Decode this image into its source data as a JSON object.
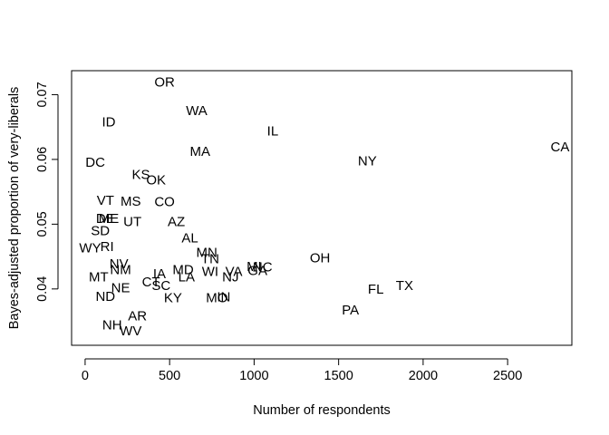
{
  "chart_data": {
    "type": "scatter",
    "title": "",
    "xlabel": "Number of respondents",
    "ylabel": "Bayes-adjusted proportion of very-liberals",
    "xlim": [
      -80,
      2880
    ],
    "ylim": [
      0.0313,
      0.0737
    ],
    "xticks": [
      0,
      500,
      1000,
      1500,
      2000,
      2500
    ],
    "xtick_labels": [
      "0",
      "500",
      "1000",
      "1500",
      "2000",
      "2500"
    ],
    "yticks": [
      0.04,
      0.05,
      0.06,
      0.07
    ],
    "ytick_labels": [
      "0.04",
      "0.05",
      "0.06",
      "0.07"
    ],
    "grid": false,
    "legend": "none",
    "points": [
      {
        "label": "OR",
        "x": 470,
        "y": 0.0719
      },
      {
        "label": "WA",
        "x": 660,
        "y": 0.0675
      },
      {
        "label": "ID",
        "x": 140,
        "y": 0.0657
      },
      {
        "label": "IL",
        "x": 1110,
        "y": 0.0643
      },
      {
        "label": "CA",
        "x": 2810,
        "y": 0.0619
      },
      {
        "label": "MA",
        "x": 680,
        "y": 0.0612
      },
      {
        "label": "NY",
        "x": 1670,
        "y": 0.0597
      },
      {
        "label": "DC",
        "x": 60,
        "y": 0.0595
      },
      {
        "label": "KS",
        "x": 330,
        "y": 0.0576
      },
      {
        "label": "OK",
        "x": 420,
        "y": 0.0568
      },
      {
        "label": "VT",
        "x": 120,
        "y": 0.0536
      },
      {
        "label": "MS",
        "x": 270,
        "y": 0.0535
      },
      {
        "label": "CO",
        "x": 470,
        "y": 0.0534
      },
      {
        "label": "DE",
        "x": 120,
        "y": 0.0508
      },
      {
        "label": "ME",
        "x": 140,
        "y": 0.0508
      },
      {
        "label": "UT",
        "x": 280,
        "y": 0.0503
      },
      {
        "label": "AZ",
        "x": 540,
        "y": 0.0503
      },
      {
        "label": "SD",
        "x": 90,
        "y": 0.0489
      },
      {
        "label": "AL",
        "x": 620,
        "y": 0.0478
      },
      {
        "label": "RI",
        "x": 130,
        "y": 0.0465
      },
      {
        "label": "WY",
        "x": 30,
        "y": 0.0463
      },
      {
        "label": "MN",
        "x": 720,
        "y": 0.0456
      },
      {
        "label": "OH",
        "x": 1390,
        "y": 0.0447
      },
      {
        "label": "TN",
        "x": 740,
        "y": 0.0446
      },
      {
        "label": "NV",
        "x": 200,
        "y": 0.0438
      },
      {
        "label": "MI",
        "x": 1000,
        "y": 0.0434
      },
      {
        "label": "NC",
        "x": 1050,
        "y": 0.0433
      },
      {
        "label": "NM",
        "x": 210,
        "y": 0.0429
      },
      {
        "label": "MD",
        "x": 580,
        "y": 0.0429
      },
      {
        "label": "GA",
        "x": 1020,
        "y": 0.0428
      },
      {
        "label": "WI",
        "x": 740,
        "y": 0.0426
      },
      {
        "label": "VA",
        "x": 880,
        "y": 0.0426
      },
      {
        "label": "IA",
        "x": 440,
        "y": 0.0423
      },
      {
        "label": "NJ",
        "x": 860,
        "y": 0.0418
      },
      {
        "label": "LA",
        "x": 600,
        "y": 0.0418
      },
      {
        "label": "MT",
        "x": 80,
        "y": 0.0418
      },
      {
        "label": "CT",
        "x": 390,
        "y": 0.041
      },
      {
        "label": "TX",
        "x": 1890,
        "y": 0.0405
      },
      {
        "label": "SC",
        "x": 450,
        "y": 0.0405
      },
      {
        "label": "NE",
        "x": 210,
        "y": 0.0401
      },
      {
        "label": "FL",
        "x": 1720,
        "y": 0.0399
      },
      {
        "label": "ND",
        "x": 120,
        "y": 0.0388
      },
      {
        "label": "KY",
        "x": 520,
        "y": 0.0386
      },
      {
        "label": "MO",
        "x": 780,
        "y": 0.0386
      },
      {
        "label": "IN",
        "x": 820,
        "y": 0.0387
      },
      {
        "label": "PA",
        "x": 1570,
        "y": 0.0367
      },
      {
        "label": "AR",
        "x": 310,
        "y": 0.0358
      },
      {
        "label": "NH",
        "x": 160,
        "y": 0.0344
      },
      {
        "label": "WV",
        "x": 270,
        "y": 0.0335
      }
    ]
  }
}
